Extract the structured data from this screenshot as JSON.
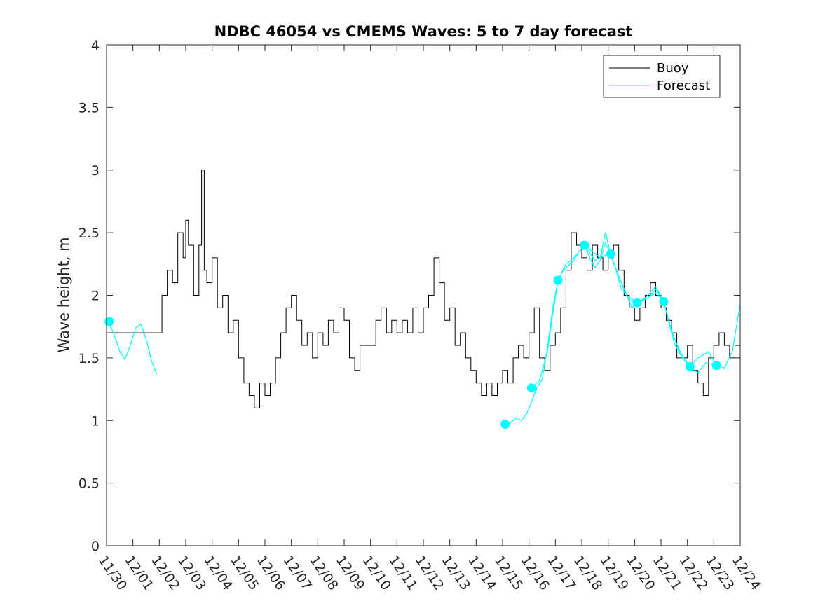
{
  "chart_data": {
    "type": "line",
    "title": "NDBC 46054 vs CMEMS Waves: 5 to 7 day forecast",
    "xlabel": "",
    "ylabel": "Wave height, m",
    "xlim": [
      0,
      24
    ],
    "ylim": [
      0,
      4
    ],
    "x_unit": "days from 11/30",
    "yticks": [
      0,
      0.5,
      1,
      1.5,
      2,
      2.5,
      3,
      3.5,
      4
    ],
    "ytick_labels": [
      "0",
      "0.5",
      "1",
      "1.5",
      "2",
      "2.5",
      "3",
      "3.5",
      "4"
    ],
    "xticks": [
      0,
      1,
      2,
      3,
      4,
      5,
      6,
      7,
      8,
      9,
      10,
      11,
      12,
      13,
      14,
      15,
      16,
      17,
      18,
      19,
      20,
      21,
      22,
      23,
      24
    ],
    "xtick_labels": [
      "11/30",
      "12/01",
      "12/02",
      "12/03",
      "12/04",
      "12/05",
      "12/06",
      "12/07",
      "12/08",
      "12/09",
      "12/10",
      "12/11",
      "12/12",
      "12/13",
      "12/14",
      "12/15",
      "12/16",
      "12/17",
      "12/18",
      "12/19",
      "12/20",
      "12/21",
      "12/22",
      "12/23",
      "12/24"
    ],
    "grid": false,
    "legend": {
      "position": "top-right",
      "entries": [
        "Buoy",
        "Forecast"
      ]
    },
    "colors": {
      "buoy": "#000000",
      "forecast": "#00ffff",
      "axes": "#262626"
    },
    "series": [
      {
        "name": "Buoy",
        "x": [
          0,
          2,
          2.1,
          2.3,
          2.5,
          2.7,
          2.9,
          3.0,
          3.1,
          3.3,
          3.5,
          3.6,
          3.7,
          3.8,
          4.0,
          4.2,
          4.4,
          4.6,
          4.8,
          5.0,
          5.2,
          5.4,
          5.6,
          5.8,
          6.0,
          6.2,
          6.4,
          6.6,
          6.8,
          7.0,
          7.2,
          7.4,
          7.6,
          7.8,
          8.0,
          8.2,
          8.4,
          8.6,
          8.8,
          9.0,
          9.2,
          9.4,
          9.6,
          9.8,
          10.0,
          10.2,
          10.4,
          10.6,
          10.8,
          11.0,
          11.2,
          11.4,
          11.6,
          11.8,
          12.0,
          12.2,
          12.4,
          12.6,
          12.8,
          13.0,
          13.2,
          13.4,
          13.6,
          13.8,
          14.0,
          14.2,
          14.4,
          14.6,
          14.8,
          15.0,
          15.2,
          15.4,
          15.6,
          15.8,
          16.0,
          16.2,
          16.4,
          16.6,
          16.8,
          17.0,
          17.2,
          17.4,
          17.6,
          17.8,
          18.0,
          18.2,
          18.4,
          18.6,
          18.8,
          19.0,
          19.2,
          19.4,
          19.6,
          19.8,
          20.0,
          20.2,
          20.4,
          20.6,
          20.8,
          21.0,
          21.2,
          21.4,
          21.6,
          21.8,
          22.0,
          22.2,
          22.4,
          22.6,
          22.8,
          23.0,
          23.2,
          23.4,
          23.6,
          23.8
        ],
        "y": [
          1.7,
          1.7,
          2.0,
          2.2,
          2.1,
          2.5,
          2.3,
          2.6,
          2.4,
          2.0,
          2.4,
          3.0,
          2.2,
          2.1,
          2.3,
          1.9,
          2.0,
          1.7,
          1.8,
          1.5,
          1.3,
          1.2,
          1.1,
          1.3,
          1.2,
          1.3,
          1.5,
          1.7,
          1.9,
          2.0,
          1.8,
          1.6,
          1.7,
          1.5,
          1.7,
          1.6,
          1.8,
          1.7,
          1.9,
          1.8,
          1.5,
          1.4,
          1.6,
          1.6,
          1.6,
          1.8,
          1.9,
          1.7,
          1.8,
          1.7,
          1.8,
          1.7,
          1.9,
          1.7,
          1.9,
          2.0,
          2.3,
          2.1,
          1.8,
          1.9,
          1.6,
          1.7,
          1.5,
          1.4,
          1.3,
          1.2,
          1.3,
          1.2,
          1.3,
          1.4,
          1.3,
          1.5,
          1.6,
          1.5,
          1.7,
          1.9,
          1.5,
          1.4,
          1.6,
          1.7,
          1.9,
          2.2,
          2.5,
          2.4,
          2.3,
          2.2,
          2.4,
          2.3,
          2.2,
          2.3,
          2.4,
          2.2,
          2.0,
          1.9,
          1.8,
          1.9,
          2.0,
          2.1,
          2.0,
          1.9,
          1.8,
          1.7,
          1.5,
          1.5,
          1.6,
          1.4,
          1.3,
          1.2,
          1.5,
          1.6,
          1.7,
          1.6,
          1.5,
          1.6
        ]
      },
      {
        "name": "Forecast",
        "segments": [
          {
            "x": [
              0.1,
              0.3,
              0.5,
              0.7,
              0.9,
              1.1,
              1.3,
              1.5,
              1.7,
              1.9
            ],
            "y": [
              1.78,
              1.68,
              1.55,
              1.49,
              1.6,
              1.74,
              1.77,
              1.65,
              1.48,
              1.37
            ]
          },
          {
            "x": [
              15.1,
              15.3,
              15.5,
              15.7,
              15.9,
              16.1,
              16.3,
              16.5,
              16.7,
              16.9,
              17.1
            ],
            "y": [
              0.97,
              0.98,
              1.02,
              1.0,
              1.05,
              1.15,
              1.26,
              1.33,
              1.58,
              1.9,
              2.12
            ]
          },
          {
            "x": [
              16.1,
              16.4,
              16.7,
              16.9,
              17.1,
              17.3,
              17.5,
              17.7,
              17.9,
              18.1,
              18.3,
              18.5,
              18.7,
              18.9,
              19.1
            ],
            "y": [
              1.26,
              1.32,
              1.55,
              1.85,
              2.12,
              2.2,
              2.24,
              2.28,
              2.35,
              2.4,
              2.3,
              2.22,
              2.28,
              2.42,
              2.32
            ]
          },
          {
            "x": [
              17.1,
              17.4,
              17.7,
              18.1,
              18.4,
              18.7,
              18.9,
              19.1,
              19.3,
              19.5,
              19.7,
              19.9,
              20.1
            ],
            "y": [
              2.12,
              2.25,
              2.3,
              2.4,
              2.35,
              2.3,
              2.5,
              2.32,
              2.2,
              2.05,
              2.0,
              1.9,
              1.94
            ]
          },
          {
            "x": [
              18.1,
              18.5,
              18.9,
              19.1,
              19.4,
              19.7,
              20.1,
              20.5,
              20.8,
              21.1
            ],
            "y": [
              2.4,
              2.28,
              2.32,
              2.32,
              2.15,
              2.0,
              1.94,
              1.98,
              2.05,
              1.95
            ]
          },
          {
            "x": [
              19.1,
              19.5,
              19.8,
              20.1,
              20.4,
              20.8,
              21.1,
              21.4,
              21.7,
              22.1
            ],
            "y": [
              2.32,
              2.1,
              1.96,
              1.94,
              1.98,
              2.07,
              1.95,
              1.72,
              1.55,
              1.43
            ]
          },
          {
            "x": [
              20.1,
              20.5,
              20.8,
              21.1,
              21.4,
              21.8,
              22.1,
              22.4,
              22.7,
              23.1
            ],
            "y": [
              1.94,
              1.98,
              2.02,
              1.95,
              1.7,
              1.52,
              1.43,
              1.38,
              1.46,
              1.44
            ]
          },
          {
            "x": [
              21.1,
              21.5,
              21.8,
              22.1,
              22.4,
              22.8,
              23.1,
              23.4,
              23.7,
              24.0
            ],
            "y": [
              1.95,
              1.62,
              1.5,
              1.43,
              1.5,
              1.55,
              1.44,
              1.42,
              1.55,
              1.93
            ]
          }
        ],
        "markers": {
          "x": [
            0.1,
            15.1,
            16.1,
            17.1,
            18.1,
            19.1,
            20.1,
            21.1,
            22.1,
            23.1
          ],
          "y": [
            1.79,
            0.97,
            1.26,
            2.12,
            2.4,
            2.33,
            1.94,
            1.95,
            1.43,
            1.44
          ]
        }
      }
    ]
  }
}
